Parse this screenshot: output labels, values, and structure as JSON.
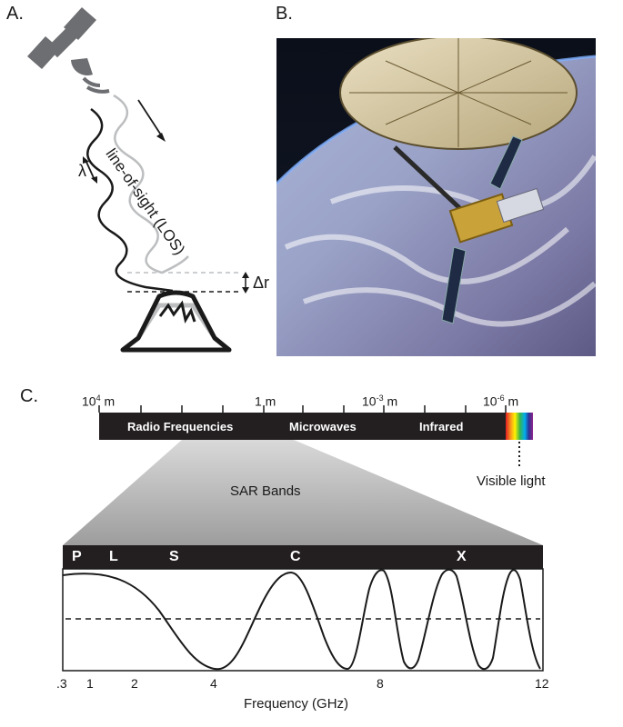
{
  "panels": {
    "a": "A.",
    "b": "B.",
    "c": "C."
  },
  "panel_a": {
    "los_label": "line-of-sight (LOS)",
    "lambda_label": "λ",
    "delta_r_label": "Δr"
  },
  "spectrum": {
    "scale_labels": [
      {
        "base": "10",
        "exp": "4",
        "unit": " m"
      },
      {
        "base": "1",
        "exp": "",
        "unit": " m"
      },
      {
        "base": "10",
        "exp": "-3",
        "unit": " m"
      },
      {
        "base": "10",
        "exp": "-6",
        "unit": " m"
      }
    ],
    "regions": [
      "Radio Frequencies",
      "Microwaves",
      "Infrared"
    ],
    "visible_label": "Visible light"
  },
  "sar": {
    "title": "SAR Bands",
    "bands": [
      "P",
      "L",
      "S",
      "C",
      "X"
    ],
    "freq_ticks": [
      ".3",
      "1",
      "2",
      "4",
      "8",
      "12"
    ],
    "xlabel": "Frequency (GHz)"
  },
  "colors": {
    "bar": "#231f20",
    "satellite_icon": "#6d6e71",
    "wave_light": "#bcbec0"
  }
}
